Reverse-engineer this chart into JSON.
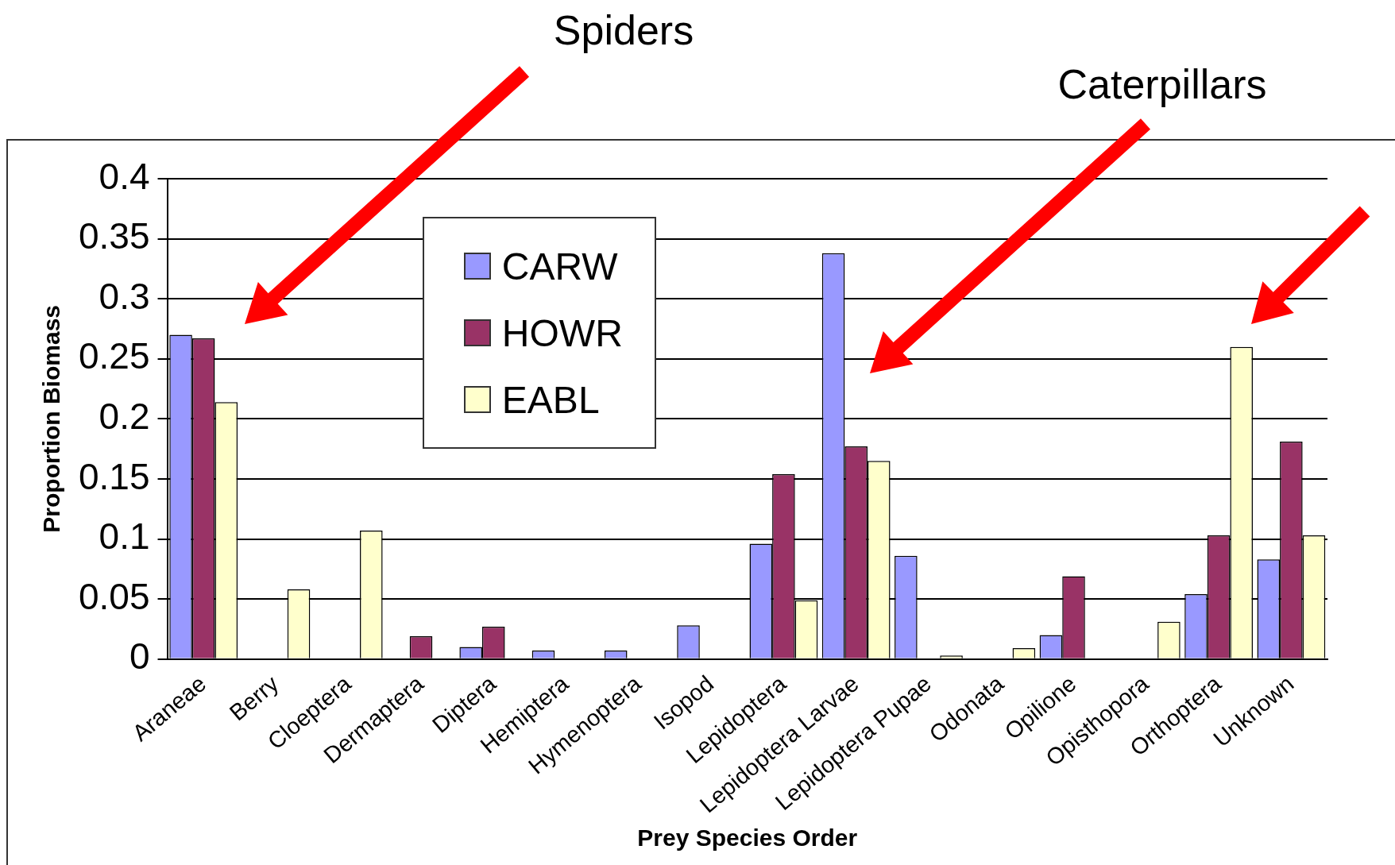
{
  "chart_data": {
    "type": "bar",
    "xlabel": "Prey Species Order",
    "ylabel": "Proportion Biomass",
    "categories": [
      "Araneae",
      "Berry",
      "Cloeptera",
      "Dermaptera",
      "Diptera",
      "Hemiptera",
      "Hymenoptera",
      "Isopod",
      "Lepidoptera",
      "Lepidoptera Larvae",
      "Lepidoptera Pupae",
      "Odonata",
      "Opilione",
      "Opisthopora",
      "Orthoptera",
      "Unknown"
    ],
    "series": [
      {
        "name": "CARW",
        "color": "#9999ff",
        "values": [
          0.27,
          0,
          0,
          0,
          0.01,
          0.007,
          0.007,
          0.028,
          0.096,
          0.338,
          0.086,
          0,
          0.02,
          0,
          0.054,
          0.083
        ]
      },
      {
        "name": "HOWR",
        "color": "#993366",
        "values": [
          0.267,
          0,
          0,
          0.019,
          0.027,
          0,
          0,
          0,
          0.154,
          0.177,
          0,
          0,
          0.069,
          0,
          0.103,
          0.181
        ]
      },
      {
        "name": "EABL",
        "color": "#ffffcc",
        "values": [
          0.214,
          0.058,
          0.107,
          0,
          0,
          0,
          0,
          0,
          0.049,
          0.165,
          0.003,
          0.009,
          0,
          0.031,
          0.26,
          0.103
        ]
      }
    ],
    "ylim": [
      0,
      0.4
    ],
    "yticks": [
      0,
      0.05,
      0.1,
      0.15,
      0.2,
      0.25,
      0.3,
      0.35,
      0.4
    ],
    "grid": "y",
    "legend": "top left",
    "annotations": [
      "Spiders",
      "Caterpillars"
    ]
  }
}
